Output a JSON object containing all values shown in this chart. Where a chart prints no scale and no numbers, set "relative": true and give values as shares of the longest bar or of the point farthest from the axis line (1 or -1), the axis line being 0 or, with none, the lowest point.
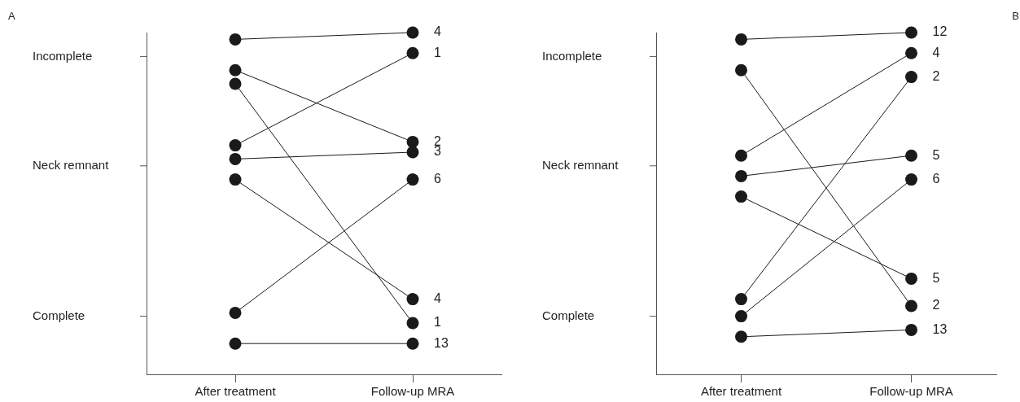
{
  "chart_data": [
    {
      "type": "line",
      "relative": true,
      "categories": [
        "After treatment",
        "Follow-up MRA"
      ],
      "grid": false,
      "legend": false,
      "marker": "circle",
      "annotations": [
        "A",
        "Incomplete",
        "Neck remnant",
        "Complete",
        {
          "text": "4",
          "x": "Follow-up MRA",
          "y": 1
        },
        {
          "text": "2",
          "x": "Follow-up MRA",
          "y": 0.68
        },
        {
          "text": "1",
          "x": "Follow-up MRA",
          "y": 0.15
        },
        {
          "text": "1",
          "x": "Follow-up MRA",
          "y": 0.94
        },
        {
          "text": "3",
          "x": "Follow-up MRA",
          "y": 0.65
        },
        {
          "text": "4",
          "x": "Follow-up MRA",
          "y": 0.22
        },
        {
          "text": "6",
          "x": "Follow-up MRA",
          "y": 0.57
        },
        {
          "text": "13",
          "x": "Follow-up MRA",
          "y": 0.09
        }
      ],
      "series": [
        {
          "color": "#1a1a1a",
          "values": [
            0.98,
            1
          ]
        },
        {
          "color": "#1a1a1a",
          "values": [
            0.89,
            0.68
          ]
        },
        {
          "color": "#1a1a1a",
          "values": [
            0.85,
            0.15
          ]
        },
        {
          "color": "#1a1a1a",
          "values": [
            0.67,
            0.94
          ]
        },
        {
          "color": "#1a1a1a",
          "values": [
            0.63,
            0.65
          ]
        },
        {
          "color": "#1a1a1a",
          "values": [
            0.57,
            0.22
          ]
        },
        {
          "color": "#1a1a1a",
          "values": [
            0.18,
            0.57
          ]
        },
        {
          "color": "#1a1a1a",
          "values": [
            0.09,
            0.09
          ]
        }
      ]
    },
    {
      "type": "line",
      "relative": true,
      "categories": [
        "After treatment",
        "Follow-up MRA"
      ],
      "grid": false,
      "legend": false,
      "marker": "circle",
      "annotations": [
        "B",
        "Incomplete",
        "Neck remnant",
        "Complete",
        {
          "text": "12",
          "x": "Follow-up MRA",
          "y": 1
        },
        {
          "text": "2",
          "x": "Follow-up MRA",
          "y": 0.2
        },
        {
          "text": "4",
          "x": "Follow-up MRA",
          "y": 0.94
        },
        {
          "text": "5",
          "x": "Follow-up MRA",
          "y": 0.64
        },
        {
          "text": "5",
          "x": "Follow-up MRA",
          "y": 0.28
        },
        {
          "text": "2",
          "x": "Follow-up MRA",
          "y": 0.87
        },
        {
          "text": "6",
          "x": "Follow-up MRA",
          "y": 0.57
        },
        {
          "text": "13",
          "x": "Follow-up MRA",
          "y": 0.13
        }
      ],
      "series": [
        {
          "color": "#1a1a1a",
          "values": [
            0.98,
            1
          ]
        },
        {
          "color": "#1a1a1a",
          "values": [
            0.89,
            0.2
          ]
        },
        {
          "color": "#1a1a1a",
          "values": [
            0.64,
            0.94
          ]
        },
        {
          "color": "#1a1a1a",
          "values": [
            0.58,
            0.64
          ]
        },
        {
          "color": "#1a1a1a",
          "values": [
            0.52,
            0.28
          ]
        },
        {
          "color": "#1a1a1a",
          "values": [
            0.22,
            0.87
          ]
        },
        {
          "color": "#1a1a1a",
          "values": [
            0.17,
            0.57
          ]
        },
        {
          "color": "#1a1a1a",
          "values": [
            0.11,
            0.13
          ]
        }
      ]
    }
  ]
}
